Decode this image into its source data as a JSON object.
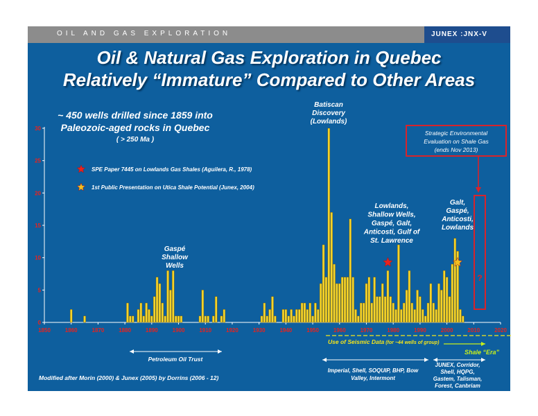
{
  "header": {
    "section_label": "OIL AND GAS EXPLORATION",
    "brand": "JUNEX :JNX-V"
  },
  "title_line1": "Oil & Natural Gas Exploration in Quebec",
  "title_line2": "Relatively “Immature” Compared to Other Areas",
  "intro": {
    "line1": "~ 450 wells drilled since 1859 into",
    "line2": "Paleozoic-aged rocks in Quebec",
    "line3": "( > 250 Ma )"
  },
  "legend": [
    {
      "label": "SPE Paper 7445 on Lowlands Gas Shales (Aguilera, R., 1978)",
      "star_color": "#e8231e"
    },
    {
      "label": "1st Public Presentation on Utica Shale Potential (Junex, 2004)",
      "star_color": "#f0c020"
    }
  ],
  "annotations": {
    "batiscan": [
      "Batiscan",
      "Discovery",
      "(Lowlands)"
    ],
    "gaspe_shallow": [
      "Gaspé",
      "Shallow",
      "Wells"
    ],
    "lowlands": [
      "Lowlands,",
      "Shallow Wells,",
      "Gaspé, Galt,",
      "Anticosti, Gulf of",
      "St. Lawrence"
    ],
    "galt": [
      "Galt,",
      "Gaspé,",
      "Anticosti,",
      "Lowlands"
    ],
    "strategic": [
      "Strategic Environmental",
      "Evaluation on Shale Gas",
      "(ends Nov 2013)"
    ],
    "question": "?"
  },
  "periods": {
    "petroleum": "Petroleum Oil Trust",
    "seismic": "Use of Seismic Data",
    "seismic_note": "(for ~44 wells of group)",
    "shale_era": "Shale “Era”",
    "companies1": [
      "Imperial, Shell, SOQUIP, BHP, Bow",
      "Valley, Intermont"
    ],
    "companies2": [
      "JUNEX, Corridor,",
      "Shell, HQPG,",
      "Gastem, Talisman,",
      "Forest, Canbriam"
    ]
  },
  "credit": "Modified after Morin (2000) & Junex (2005) by Dorrins (2006 - 12)",
  "colors": {
    "panel": "#0e5f9e",
    "bar": "#f5d42a",
    "axis_label": "#e8231e",
    "box": "#d9232a",
    "seismic": "#f5e61a",
    "shale": "#c8f01a"
  },
  "chart_data": {
    "type": "bar",
    "xlabel": "",
    "ylabel": "",
    "xlim": [
      1850,
      2020
    ],
    "ylim": [
      0,
      30
    ],
    "y_ticks": [
      0,
      5,
      10,
      15,
      20,
      25,
      30
    ],
    "x_ticks": [
      1850,
      1860,
      1870,
      1880,
      1890,
      1900,
      1910,
      1920,
      1930,
      1940,
      1950,
      1960,
      1970,
      1980,
      1990,
      2000,
      2010,
      2020
    ],
    "x": [
      1860,
      1865,
      1881,
      1882,
      1883,
      1885,
      1886,
      1887,
      1888,
      1889,
      1890,
      1891,
      1892,
      1893,
      1894,
      1895,
      1896,
      1897,
      1898,
      1899,
      1900,
      1901,
      1908,
      1909,
      1910,
      1911,
      1913,
      1914,
      1916,
      1917,
      1931,
      1932,
      1933,
      1934,
      1935,
      1936,
      1939,
      1940,
      1941,
      1942,
      1943,
      1944,
      1945,
      1946,
      1947,
      1948,
      1949,
      1950,
      1951,
      1952,
      1953,
      1954,
      1955,
      1956,
      1957,
      1958,
      1959,
      1960,
      1961,
      1962,
      1963,
      1964,
      1965,
      1966,
      1967,
      1968,
      1969,
      1970,
      1971,
      1972,
      1973,
      1974,
      1975,
      1976,
      1977,
      1978,
      1979,
      1980,
      1981,
      1982,
      1983,
      1984,
      1985,
      1986,
      1987,
      1988,
      1989,
      1990,
      1991,
      1992,
      1993,
      1994,
      1995,
      1996,
      1997,
      1998,
      1999,
      2000,
      2001,
      2002,
      2003,
      2004,
      2005,
      2006,
      2007,
      2008,
      2009,
      2010,
      2011,
      2012
    ],
    "values": [
      2,
      1,
      3,
      1,
      1,
      2,
      3,
      1,
      3,
      2,
      1,
      4,
      7,
      6,
      3,
      1,
      8,
      5,
      8,
      1,
      1,
      1,
      1,
      5,
      1,
      1,
      1,
      4,
      1,
      2,
      1,
      3,
      1,
      2,
      4,
      1,
      2,
      2,
      1,
      2,
      1,
      2,
      2,
      3,
      3,
      2,
      3,
      1,
      3,
      2,
      6,
      12,
      7,
      30,
      17,
      9,
      6,
      6,
      7,
      7,
      7,
      16,
      7,
      2,
      1,
      3,
      3,
      6,
      7,
      3,
      7,
      4,
      4,
      6,
      4,
      8,
      4,
      3,
      2,
      12,
      2,
      3,
      5,
      8,
      3,
      2,
      5,
      4,
      2,
      1,
      3,
      6,
      3,
      2,
      6,
      5,
      8,
      7,
      4,
      9,
      13,
      11,
      2,
      1,
      0,
      0,
      0,
      0,
      0,
      0
    ],
    "markers": [
      {
        "year": 1978,
        "value": 9.5,
        "color": "#e8231e"
      },
      {
        "year": 2004,
        "value": 9.5,
        "color": "#f0c020"
      }
    ]
  }
}
